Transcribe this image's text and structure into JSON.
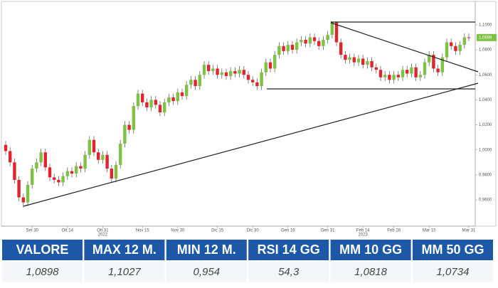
{
  "chart_data": {
    "type": "candlestick",
    "categories": [
      null,
      null,
      null,
      null,
      null,
      null,
      "Set 30",
      null,
      null,
      null,
      null,
      null,
      null,
      null,
      "Ott 14",
      null,
      null,
      null,
      null,
      null,
      null,
      null,
      "Ott 31",
      null,
      null,
      null,
      null,
      null,
      null,
      null,
      null,
      "Nov 15",
      null,
      null,
      null,
      null,
      null,
      null,
      null,
      "Nov 30",
      null,
      null,
      null,
      null,
      null,
      null,
      null,
      null,
      "Dic 15",
      null,
      null,
      null,
      null,
      null,
      null,
      null,
      "Dic 30",
      null,
      null,
      null,
      null,
      null,
      null,
      null,
      "Gen 16",
      null,
      null,
      null,
      null,
      null,
      null,
      null,
      null,
      "Gen 31",
      null,
      null,
      null,
      null,
      null,
      null,
      null,
      "Feb 14",
      null,
      null,
      null,
      null,
      null,
      null,
      "Feb 28",
      null,
      null,
      null,
      null,
      null,
      null,
      null,
      "Mar 15",
      null,
      null,
      null,
      null,
      null,
      null,
      null,
      null,
      "Mar 31"
    ],
    "year_labels": [
      {
        "index": 22,
        "label": "2022"
      },
      {
        "index": 81,
        "label": "2023"
      }
    ],
    "open": [
      1.004,
      0.999,
      0.99,
      0.976,
      0.962,
      0.958,
      0.972,
      0.985,
      0.99,
      0.998,
      0.986,
      0.978,
      0.976,
      0.974,
      0.979,
      0.983,
      0.981,
      0.987,
      0.985,
      0.996,
      1.008,
      0.998,
      0.992,
      0.996,
      0.985,
      0.977,
      0.988,
      1.005,
      1.02,
      1.016,
      1.035,
      1.045,
      1.038,
      1.034,
      1.04,
      1.036,
      1.03,
      1.038,
      1.042,
      1.039,
      1.046,
      1.043,
      1.052,
      1.056,
      1.051,
      1.06,
      1.068,
      1.063,
      1.065,
      1.06,
      1.062,
      1.059,
      1.063,
      1.061,
      1.064,
      1.06,
      1.056,
      1.054,
      1.051,
      1.062,
      1.07,
      1.065,
      1.076,
      1.083,
      1.079,
      1.084,
      1.08,
      1.086,
      1.088,
      1.085,
      1.09,
      1.087,
      1.083,
      1.088,
      1.092,
      1.102,
      1.086,
      1.076,
      1.072,
      1.074,
      1.07,
      1.073,
      1.068,
      1.071,
      1.066,
      1.064,
      1.058,
      1.06,
      1.056,
      1.06,
      1.058,
      1.064,
      1.061,
      1.066,
      1.058,
      1.06,
      1.07,
      1.076,
      1.065,
      1.062,
      1.074,
      1.086,
      1.083,
      1.079,
      1.084,
      1.09
    ],
    "high": [
      1.007,
      1.002,
      0.993,
      0.979,
      0.965,
      0.975,
      0.988,
      0.993,
      1.001,
      1.001,
      0.989,
      0.981,
      0.979,
      0.982,
      0.986,
      0.986,
      0.99,
      0.99,
      0.999,
      1.011,
      1.011,
      1.001,
      0.999,
      0.999,
      0.988,
      0.991,
      1.008,
      1.023,
      1.023,
      1.038,
      1.048,
      1.048,
      1.041,
      1.043,
      1.043,
      1.039,
      1.041,
      1.045,
      1.045,
      1.049,
      1.049,
      1.055,
      1.059,
      1.059,
      1.063,
      1.071,
      1.071,
      1.068,
      1.068,
      1.065,
      1.065,
      1.066,
      1.066,
      1.067,
      1.067,
      1.063,
      1.059,
      1.057,
      1.065,
      1.073,
      1.073,
      1.079,
      1.086,
      1.086,
      1.087,
      1.087,
      1.089,
      1.091,
      1.091,
      1.093,
      1.093,
      1.09,
      1.091,
      1.095,
      1.1027,
      1.1025,
      1.089,
      1.079,
      1.077,
      1.077,
      1.076,
      1.076,
      1.074,
      1.074,
      1.069,
      1.067,
      1.063,
      1.063,
      1.063,
      1.063,
      1.067,
      1.067,
      1.069,
      1.069,
      1.063,
      1.073,
      1.079,
      1.079,
      1.068,
      1.077,
      1.089,
      1.089,
      1.086,
      1.087,
      1.093,
      1.093
    ],
    "low": [
      0.996,
      0.987,
      0.973,
      0.959,
      0.954,
      0.955,
      0.969,
      0.982,
      0.987,
      0.983,
      0.975,
      0.973,
      0.971,
      0.971,
      0.976,
      0.978,
      0.978,
      0.982,
      0.982,
      0.993,
      0.995,
      0.989,
      0.989,
      0.982,
      0.974,
      0.974,
      0.985,
      1.002,
      1.013,
      1.013,
      1.032,
      1.035,
      1.031,
      1.031,
      1.033,
      1.027,
      1.027,
      1.035,
      1.036,
      1.036,
      1.04,
      1.04,
      1.049,
      1.048,
      1.048,
      1.057,
      1.06,
      1.06,
      1.057,
      1.057,
      1.056,
      1.056,
      1.058,
      1.058,
      1.057,
      1.053,
      1.051,
      1.048,
      1.048,
      1.059,
      1.062,
      1.062,
      1.073,
      1.076,
      1.076,
      1.077,
      1.077,
      1.083,
      1.082,
      1.082,
      1.084,
      1.08,
      1.08,
      1.085,
      1.089,
      1.083,
      1.073,
      1.069,
      1.069,
      1.067,
      1.067,
      1.065,
      1.065,
      1.063,
      1.061,
      1.055,
      1.055,
      1.053,
      1.053,
      1.055,
      1.055,
      1.058,
      1.058,
      1.055,
      1.055,
      1.057,
      1.067,
      1.062,
      1.059,
      1.059,
      1.071,
      1.08,
      1.076,
      1.076,
      1.081,
      1.087
    ],
    "close": [
      0.999,
      0.99,
      0.976,
      0.962,
      0.958,
      0.972,
      0.985,
      0.99,
      0.998,
      0.986,
      0.978,
      0.976,
      0.974,
      0.979,
      0.983,
      0.981,
      0.987,
      0.985,
      0.996,
      1.008,
      0.998,
      0.992,
      0.996,
      0.985,
      0.977,
      0.988,
      1.005,
      1.02,
      1.016,
      1.035,
      1.045,
      1.038,
      1.034,
      1.04,
      1.036,
      1.03,
      1.038,
      1.042,
      1.039,
      1.046,
      1.043,
      1.052,
      1.056,
      1.051,
      1.06,
      1.068,
      1.063,
      1.065,
      1.06,
      1.062,
      1.059,
      1.063,
      1.061,
      1.064,
      1.06,
      1.056,
      1.054,
      1.051,
      1.062,
      1.07,
      1.065,
      1.076,
      1.083,
      1.079,
      1.084,
      1.08,
      1.086,
      1.088,
      1.085,
      1.09,
      1.087,
      1.083,
      1.088,
      1.092,
      1.102,
      1.086,
      1.076,
      1.072,
      1.074,
      1.07,
      1.073,
      1.068,
      1.071,
      1.066,
      1.064,
      1.058,
      1.06,
      1.056,
      1.06,
      1.058,
      1.064,
      1.061,
      1.066,
      1.058,
      1.06,
      1.07,
      1.076,
      1.065,
      1.062,
      1.074,
      1.086,
      1.083,
      1.079,
      1.084,
      1.09,
      1.0898
    ],
    "up_color": "#7dc243",
    "down_color": "#e1252f",
    "last_label": "1,0898",
    "ylim": [
      0.939,
      1.117
    ],
    "yticks": [
      {
        "value": 0.96,
        "label": "0,9600"
      },
      {
        "value": 0.98,
        "label": "0,9800"
      },
      {
        "value": 1.0,
        "label": "1,0000"
      },
      {
        "value": 1.02,
        "label": "1,0200"
      },
      {
        "value": 1.04,
        "label": "1,0400"
      },
      {
        "value": 1.06,
        "label": "1,0600"
      },
      {
        "value": 1.08,
        "label": "1,0800"
      },
      {
        "value": 1.1,
        "label": "1,1000"
      }
    ],
    "grid": false
  },
  "table": {
    "header": [
      "VALORE",
      "MAX 12 M.",
      "MIN 12 M.",
      "RSI 14 GG",
      "MM 10 GG",
      "MM 50 GG"
    ],
    "values": [
      "1,0898",
      "1,1027",
      "0,954",
      "54,3",
      "1,0818",
      "1,0734"
    ]
  }
}
